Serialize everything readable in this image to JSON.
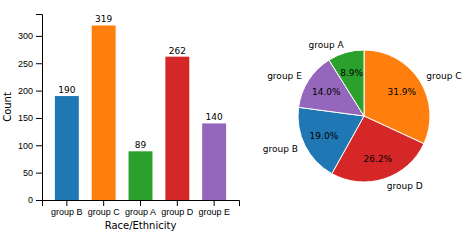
{
  "chart_data": [
    {
      "type": "bar",
      "categories": [
        "group B",
        "group C",
        "group A",
        "group D",
        "group E"
      ],
      "values": [
        190,
        319,
        89,
        262,
        140
      ],
      "colors": [
        "#1f77b4",
        "#ff7f0e",
        "#2ca02c",
        "#d62728",
        "#9467bd"
      ],
      "xlabel": "Race/Ethnicity",
      "ylabel": "Count",
      "ylim": [
        0,
        340
      ],
      "yticks": [
        0,
        50,
        100,
        150,
        200,
        250,
        300
      ],
      "grid": false,
      "data_labels": true
    },
    {
      "type": "pie",
      "categories": [
        "group C",
        "group D",
        "group B",
        "group E",
        "group A"
      ],
      "values": [
        31.9,
        26.2,
        19.0,
        14.0,
        8.9
      ],
      "value_labels": [
        "31.9%",
        "26.2%",
        "19.0%",
        "14.0%",
        "8.9%"
      ],
      "colors": [
        "#ff7f0e",
        "#d62728",
        "#1f77b4",
        "#9467bd",
        "#2ca02c"
      ],
      "data_labels": true
    }
  ]
}
